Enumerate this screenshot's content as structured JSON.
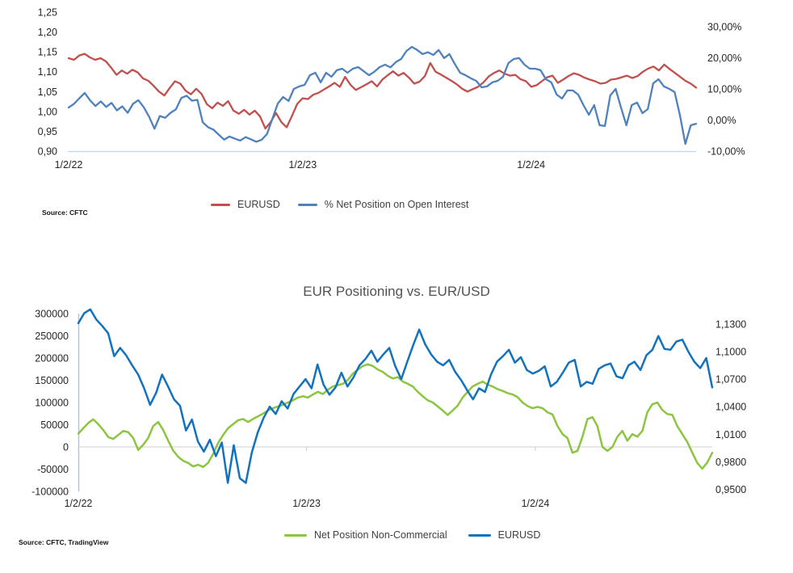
{
  "chart_data": [
    {
      "type": "line",
      "title": "",
      "source": "Source: CFTC",
      "x_ticks": {
        "labels": [
          "1/2/22",
          "1/2/23",
          "1/2/24"
        ],
        "fracs": [
          0.0,
          0.373,
          0.737
        ]
      },
      "left_axis": {
        "ticks": [
          "1,25",
          "1,20",
          "1,15",
          "1,10",
          "1,05",
          "1,00",
          "0,95",
          "0,90"
        ],
        "min": 0.9,
        "max": 1.25
      },
      "right_axis": {
        "ticks": [
          "30,00%",
          "20,00%",
          "10,00%",
          "0,00%",
          "-10,00%"
        ],
        "min": -10,
        "max": 30
      },
      "axis_colors": {
        "baseline": "#BDD7EE"
      },
      "series": [
        {
          "name": "EURUSD",
          "color": "#C0504D",
          "axis": "left",
          "values": [
            1.134,
            1.13,
            1.141,
            1.145,
            1.136,
            1.13,
            1.134,
            1.126,
            1.11,
            1.092,
            1.103,
            1.095,
            1.105,
            1.098,
            1.083,
            1.077,
            1.064,
            1.05,
            1.04,
            1.059,
            1.076,
            1.07,
            1.052,
            1.043,
            1.057,
            1.044,
            1.018,
            1.008,
            1.022,
            1.014,
            1.026,
            1.002,
            0.994,
            1.004,
            0.992,
            1.002,
            0.987,
            0.957,
            0.973,
            0.996,
            0.973,
            0.96,
            0.989,
            1.019,
            1.033,
            1.031,
            1.042,
            1.047,
            1.055,
            1.063,
            1.072,
            1.062,
            1.087,
            1.067,
            1.054,
            1.061,
            1.068,
            1.076,
            1.063,
            1.08,
            1.091,
            1.101,
            1.09,
            1.097,
            1.085,
            1.07,
            1.075,
            1.089,
            1.122,
            1.1,
            1.093,
            1.085,
            1.077,
            1.068,
            1.057,
            1.05,
            1.056,
            1.062,
            1.073,
            1.088,
            1.097,
            1.103,
            1.095,
            1.09,
            1.092,
            1.081,
            1.076,
            1.062,
            1.066,
            1.076,
            1.086,
            1.09,
            1.072,
            1.08,
            1.089,
            1.096,
            1.092,
            1.085,
            1.08,
            1.076,
            1.07,
            1.072,
            1.08,
            1.082,
            1.086,
            1.09,
            1.084,
            1.089,
            1.1,
            1.108,
            1.113,
            1.103,
            1.118,
            1.107,
            1.097,
            1.087,
            1.077,
            1.07,
            1.06
          ]
        },
        {
          "name": "% Net Position on Open Interest",
          "color": "#4F81BD",
          "axis": "right",
          "values": [
            4.0,
            5.2,
            7.0,
            8.7,
            6.3,
            4.5,
            6.0,
            4.2,
            5.5,
            3.1,
            4.4,
            2.3,
            5.2,
            6.4,
            4.1,
            1.1,
            -2.8,
            1.3,
            0.7,
            2.3,
            3.4,
            7.1,
            7.8,
            6.2,
            6.5,
            -0.7,
            -2.3,
            -3.1,
            -4.7,
            -6.3,
            -5.3,
            -6.0,
            -6.6,
            -5.5,
            -6.2,
            -7.0,
            -6.3,
            -4.5,
            0.5,
            5.3,
            7.4,
            6.1,
            10.0,
            10.8,
            11.3,
            14.4,
            15.2,
            12.1,
            15.2,
            13.9,
            16.0,
            16.5,
            15.2,
            16.5,
            17.0,
            15.7,
            14.4,
            15.5,
            17.0,
            17.8,
            16.9,
            18.6,
            19.6,
            22.2,
            23.5,
            22.5,
            21.2,
            21.8,
            20.9,
            22.5,
            19.9,
            21.2,
            18.0,
            15.2,
            14.4,
            13.4,
            12.6,
            10.5,
            10.8,
            12.1,
            12.6,
            13.9,
            18.3,
            19.6,
            19.9,
            17.8,
            16.5,
            16.5,
            16.0,
            13.1,
            12.1,
            8.2,
            6.9,
            9.5,
            9.5,
            8.2,
            4.8,
            1.7,
            4.8,
            -1.7,
            -1.9,
            7.9,
            10.0,
            4.0,
            -1.7,
            4.8,
            5.6,
            2.2,
            3.5,
            11.8,
            13.1,
            10.8,
            10.0,
            9.0,
            1.4,
            -7.7,
            -1.7,
            -1.2
          ]
        }
      ]
    },
    {
      "type": "line",
      "title": "EUR Positioning vs. EUR/USD",
      "source": "Source: CFTC, TradingView",
      "x_ticks": {
        "labels": [
          "1/2/22",
          "1/2/23",
          "1/2/24"
        ],
        "fracs": [
          0.0,
          0.36,
          0.721
        ]
      },
      "left_axis": {
        "ticks": [
          "300000",
          "250000",
          "200000",
          "150000",
          "100000",
          "50000",
          "0",
          "-50000",
          "-100000"
        ],
        "min": -100000,
        "max": 300000
      },
      "right_axis": {
        "ticks": [
          "1,1300",
          "1,1000",
          "1,0700",
          "1,0400",
          "1,0100",
          "0,9800",
          "0,9500"
        ],
        "min": 0.95,
        "max": 1.13
      },
      "axis_colors": {
        "zero_line": "#CFCFCF",
        "vertical_axis": "#9DC3E6"
      },
      "series": [
        {
          "name": "Net Position Non-Commercial",
          "color": "#8CC540",
          "axis": "left",
          "values": [
            30000,
            42000,
            54000,
            62000,
            51000,
            38000,
            22000,
            18000,
            27000,
            36000,
            33000,
            20000,
            -7000,
            5000,
            20000,
            47000,
            56000,
            38000,
            14000,
            -8000,
            -22000,
            -31000,
            -36000,
            -44000,
            -40000,
            -45000,
            -36000,
            -16000,
            9000,
            27000,
            42000,
            51000,
            60000,
            63000,
            56000,
            63000,
            69000,
            75000,
            82000,
            87000,
            91000,
            95000,
            100000,
            105000,
            111000,
            114000,
            111000,
            118000,
            124000,
            119000,
            129000,
            136000,
            139000,
            142000,
            151000,
            165000,
            174000,
            182000,
            186000,
            182000,
            174000,
            169000,
            160000,
            154000,
            157000,
            147000,
            142000,
            136000,
            124000,
            114000,
            105000,
            100000,
            91000,
            82000,
            72000,
            82000,
            93000,
            111000,
            124000,
            136000,
            142000,
            147000,
            140000,
            136000,
            130000,
            126000,
            121000,
            118000,
            112000,
            100000,
            92000,
            87000,
            90000,
            87000,
            78000,
            73000,
            47000,
            29000,
            20000,
            -13000,
            -9000,
            23000,
            63000,
            67000,
            47000,
            0,
            -9000,
            0,
            23000,
            36000,
            14000,
            29000,
            23000,
            36000,
            78000,
            96000,
            100000,
            83000,
            74000,
            72000,
            47000,
            29000,
            11000,
            -13000,
            -36000,
            -49000,
            -35000,
            -13000
          ]
        },
        {
          "name": "EURUSD",
          "color": "#1272BD",
          "axis": "right",
          "values": [
            1.131,
            1.142,
            1.146,
            1.135,
            1.128,
            1.12,
            1.095,
            1.104,
            1.096,
            1.085,
            1.075,
            1.06,
            1.042,
            1.055,
            1.075,
            1.062,
            1.048,
            1.041,
            1.014,
            1.026,
            1.002,
            0.991,
            1.004,
            0.986,
            1.001,
            0.957,
            0.998,
            0.962,
            0.957,
            0.99,
            1.012,
            1.028,
            1.04,
            1.032,
            1.046,
            1.038,
            1.054,
            1.062,
            1.07,
            1.06,
            1.086,
            1.064,
            1.053,
            1.061,
            1.077,
            1.062,
            1.072,
            1.085,
            1.092,
            1.101,
            1.089,
            1.097,
            1.104,
            1.084,
            1.07,
            1.089,
            1.107,
            1.124,
            1.108,
            1.097,
            1.089,
            1.085,
            1.091,
            1.078,
            1.069,
            1.058,
            1.048,
            1.06,
            1.056,
            1.075,
            1.089,
            1.095,
            1.102,
            1.088,
            1.094,
            1.08,
            1.076,
            1.079,
            1.084,
            1.062,
            1.067,
            1.077,
            1.088,
            1.091,
            1.062,
            1.067,
            1.065,
            1.081,
            1.085,
            1.087,
            1.073,
            1.071,
            1.085,
            1.089,
            1.08,
            1.096,
            1.102,
            1.117,
            1.103,
            1.102,
            1.111,
            1.113,
            1.1,
            1.089,
            1.082,
            1.093,
            1.061
          ]
        }
      ]
    }
  ]
}
